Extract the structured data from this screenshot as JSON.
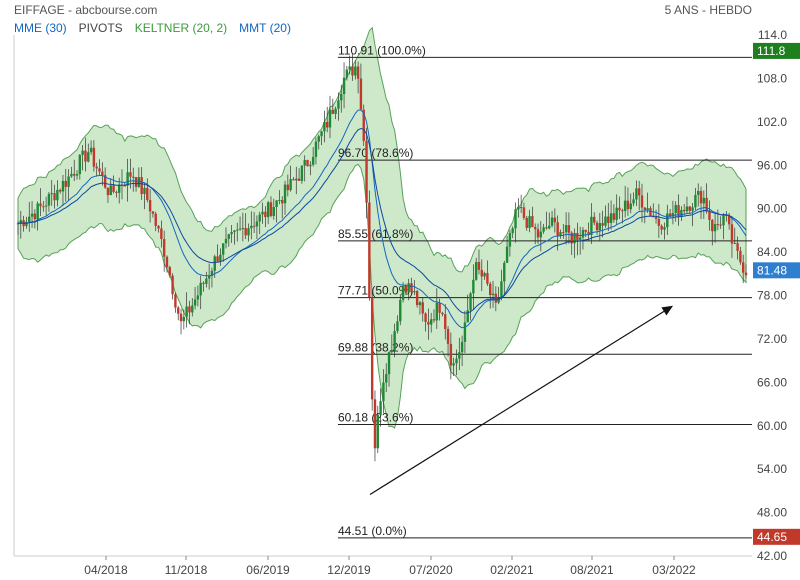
{
  "header": {
    "title": "EIFFAGE - abcbourse.com",
    "period": "5 ANS - HEBDO"
  },
  "indicators": [
    {
      "label": "MME (30)",
      "color": "#1565c0"
    },
    {
      "label": "PIVOTS",
      "color": "#444444"
    },
    {
      "label": "KELTNER (20, 2)",
      "color": "#3d9a3d"
    },
    {
      "label": "MMT (20)",
      "color": "#1565c0"
    }
  ],
  "chart_data": {
    "type": "candlestick",
    "x_ticks": [
      "04/2018",
      "11/2018",
      "06/2019",
      "12/2019",
      "07/2020",
      "02/2021",
      "08/2021",
      "03/2022"
    ],
    "y_ticks": [
      "114.0",
      "108.0",
      "102.0",
      "96.00",
      "90.00",
      "84.00",
      "78.00",
      "72.00",
      "66.00",
      "60.00",
      "54.00",
      "48.00",
      "42.00"
    ],
    "ylim": [
      42,
      114
    ],
    "fibonacci_levels": [
      {
        "value": 110.91,
        "label": "110.91 (100.0%)"
      },
      {
        "value": 96.7,
        "label": "96.70 (78.6%)"
      },
      {
        "value": 85.55,
        "label": "85.55 (61.8%)"
      },
      {
        "value": 77.71,
        "label": "77.71 (50.0%)"
      },
      {
        "value": 69.88,
        "label": "69.88 (38.2%)"
      },
      {
        "value": 60.18,
        "label": "60.18 (23.6%)"
      },
      {
        "value": 44.51,
        "label": "44.51 (0.0%)"
      }
    ],
    "price_tags": [
      {
        "value": 111.8,
        "label": "111.8",
        "color": "#1e7f1e"
      },
      {
        "value": 81.48,
        "label": "81.48",
        "color": "#2f7fd1"
      },
      {
        "value": 44.65,
        "label": "44.65",
        "color": "#c0392b"
      }
    ],
    "trendline": {
      "from": {
        "x": "2020-02",
        "y": 50.5
      },
      "to": {
        "x": "2022-03",
        "y": 76.5
      }
    },
    "price_path": [
      {
        "x": 0,
        "y": 88
      },
      {
        "x": 0.04,
        "y": 90
      },
      {
        "x": 0.09,
        "y": 94
      },
      {
        "x": 0.13,
        "y": 98
      },
      {
        "x": 0.17,
        "y": 92
      },
      {
        "x": 0.21,
        "y": 95
      },
      {
        "x": 0.24,
        "y": 91
      },
      {
        "x": 0.27,
        "y": 84
      },
      {
        "x": 0.3,
        "y": 74
      },
      {
        "x": 0.33,
        "y": 78
      },
      {
        "x": 0.37,
        "y": 84
      },
      {
        "x": 0.41,
        "y": 87
      },
      {
        "x": 0.45,
        "y": 89
      },
      {
        "x": 0.49,
        "y": 92
      },
      {
        "x": 0.53,
        "y": 96
      },
      {
        "x": 0.57,
        "y": 102
      },
      {
        "x": 0.6,
        "y": 108
      },
      {
        "x": 0.625,
        "y": 110
      },
      {
        "x": 0.64,
        "y": 96
      },
      {
        "x": 0.655,
        "y": 56
      },
      {
        "x": 0.67,
        "y": 66
      },
      {
        "x": 0.69,
        "y": 72
      },
      {
        "x": 0.71,
        "y": 80
      },
      {
        "x": 0.73,
        "y": 78
      },
      {
        "x": 0.75,
        "y": 74
      },
      {
        "x": 0.78,
        "y": 77
      },
      {
        "x": 0.8,
        "y": 68
      },
      {
        "x": 0.82,
        "y": 72
      },
      {
        "x": 0.84,
        "y": 82
      },
      {
        "x": 0.86,
        "y": 80
      },
      {
        "x": 0.88,
        "y": 76
      },
      {
        "x": 0.9,
        "y": 84
      },
      {
        "x": 0.92,
        "y": 90
      },
      {
        "x": 0.94,
        "y": 88
      },
      {
        "x": 0.96,
        "y": 86
      },
      {
        "x": 0.98,
        "y": 88
      },
      {
        "x": 1.02,
        "y": 86
      },
      {
        "x": 1.06,
        "y": 88
      },
      {
        "x": 1.1,
        "y": 89
      },
      {
        "x": 1.14,
        "y": 92
      },
      {
        "x": 1.18,
        "y": 88
      },
      {
        "x": 1.22,
        "y": 90
      },
      {
        "x": 1.26,
        "y": 92
      },
      {
        "x": 1.28,
        "y": 87
      },
      {
        "x": 1.3,
        "y": 89
      },
      {
        "x": 1.32,
        "y": 84
      },
      {
        "x": 1.34,
        "y": 81.5
      }
    ]
  }
}
